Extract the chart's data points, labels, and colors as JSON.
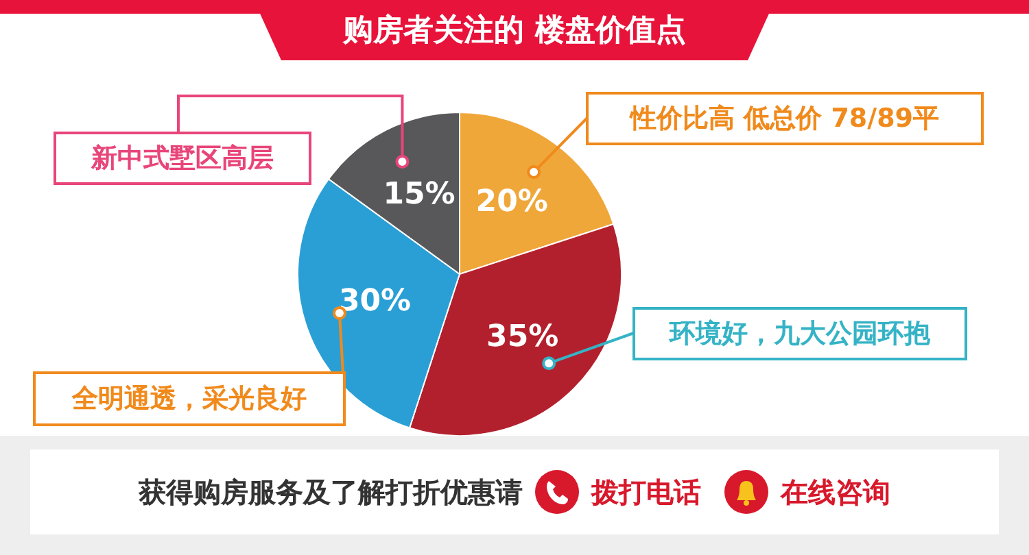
{
  "chart_data": {
    "type": "pie",
    "title": "购房者关注的 楼盘价值点",
    "categories": [
      "性价比高 低总价 78/89平",
      "环境好，九大公园环抱",
      "全明通透，采光良好",
      "新中式墅区高层"
    ],
    "values": [
      20,
      35,
      30,
      15
    ],
    "colors": [
      "#f0a73a",
      "#b3202d",
      "#2a9fd6",
      "#58585a"
    ],
    "value_labels": [
      "20%",
      "35%",
      "30%",
      "15%"
    ],
    "legend": false,
    "annotations": [
      "获得购房服务及了解打折优惠请",
      "拨打电话",
      "在线咨询"
    ]
  }
}
